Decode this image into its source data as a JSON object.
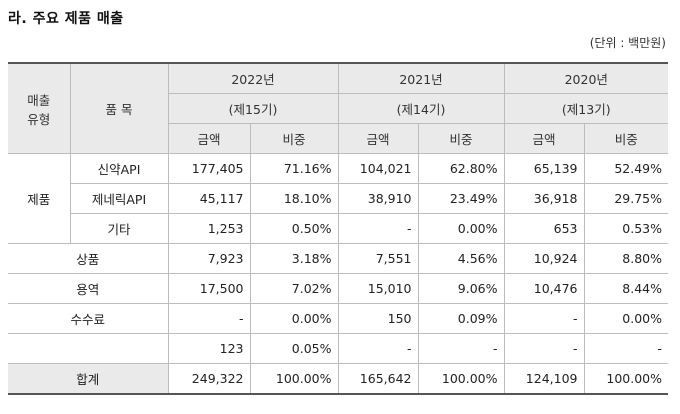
{
  "section_title": "라. 주요 제품 매출",
  "unit": "(단위 : 백만원)",
  "headers": {
    "type_line1": "매출",
    "type_line2": "유형",
    "item": "품 목",
    "years": [
      {
        "year": "2022년",
        "period": "(제15기)"
      },
      {
        "year": "2021년",
        "period": "(제14기)"
      },
      {
        "year": "2020년",
        "period": "(제13기)"
      }
    ],
    "amount": "금액",
    "ratio": "비중"
  },
  "group_label": "제품",
  "product_rows": [
    {
      "item": "신약API",
      "values": [
        "177,405",
        "71.16%",
        "104,021",
        "62.80%",
        "65,139",
        "52.49%"
      ]
    },
    {
      "item": "제네릭API",
      "values": [
        "45,117",
        "18.10%",
        "38,910",
        "23.49%",
        "36,918",
        "29.75%"
      ]
    },
    {
      "item": "기타",
      "values": [
        "1,253",
        "0.50%",
        "-",
        "0.00%",
        "653",
        "0.53%"
      ]
    }
  ],
  "other_rows": [
    {
      "item": "상품",
      "values": [
        "7,923",
        "3.18%",
        "7,551",
        "4.56%",
        "10,924",
        "8.80%"
      ]
    },
    {
      "item": "용역",
      "values": [
        "17,500",
        "7.02%",
        "15,010",
        "9.06%",
        "10,476",
        "8.44%"
      ]
    },
    {
      "item": "수수료",
      "values": [
        "-",
        "0.00%",
        "150",
        "0.09%",
        "-",
        "0.00%"
      ]
    },
    {
      "item": "",
      "values": [
        "123",
        "0.05%",
        "-",
        "-",
        "-",
        "-"
      ]
    }
  ],
  "total": {
    "item": "합계",
    "values": [
      "249,322",
      "100.00%",
      "165,642",
      "100.00%",
      "124,109",
      "100.00%"
    ]
  }
}
